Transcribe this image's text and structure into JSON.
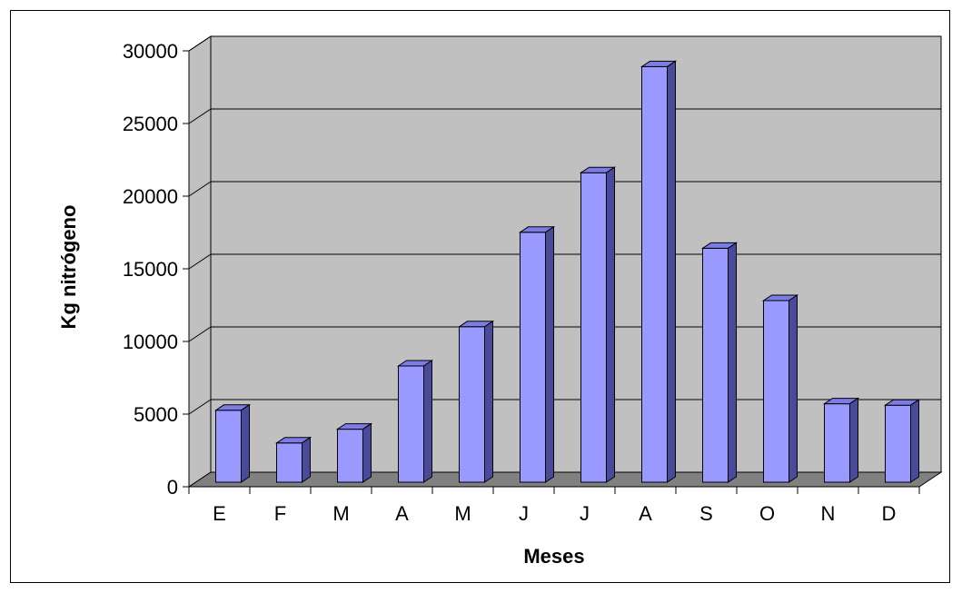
{
  "chart_data": {
    "type": "bar",
    "style": "3d-column",
    "categories": [
      "E",
      "F",
      "M",
      "A",
      "M",
      "J",
      "J",
      "A",
      "S",
      "O",
      "N",
      "D"
    ],
    "series": [
      {
        "values": [
          4950,
          2700,
          3650,
          8000,
          10700,
          17200,
          21300,
          28600,
          16100,
          12500,
          5400,
          5300
        ]
      }
    ],
    "xlabel": "Meses",
    "ylabel": "Kg nitrógeno",
    "ylim": [
      0,
      30000
    ],
    "yticks": [
      0,
      5000,
      10000,
      15000,
      20000,
      25000,
      30000
    ],
    "grid": true,
    "legend": "none",
    "colors": {
      "bar_front": "#9999FF",
      "bar_top": "#7C7CE6",
      "bar_side": "#4A4A9A",
      "wall": "#C0C0C0",
      "floor": "#808080",
      "gridline": "#000000"
    }
  }
}
